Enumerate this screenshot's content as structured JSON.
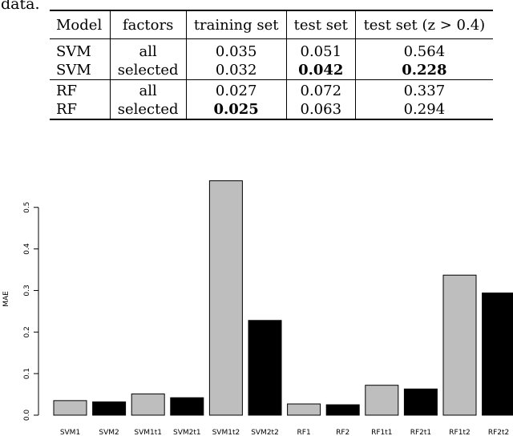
{
  "fragment_text": "data.",
  "table": {
    "headers": [
      "Model",
      "factors",
      "training set",
      "test set",
      "test set (z > 0.4)"
    ],
    "rows": [
      {
        "model": "SVM",
        "factors": "all",
        "training": "0.035",
        "test": "0.051",
        "test_z": "0.564",
        "bold": []
      },
      {
        "model": "SVM",
        "factors": "selected",
        "training": "0.032",
        "test": "0.042",
        "test_z": "0.228",
        "bold": [
          "test",
          "test_z"
        ]
      },
      {
        "model": "RF",
        "factors": "all",
        "training": "0.027",
        "test": "0.072",
        "test_z": "0.337",
        "bold": []
      },
      {
        "model": "RF",
        "factors": "selected",
        "training": "0.025",
        "test": "0.063",
        "test_z": "0.294",
        "bold": [
          "training"
        ]
      }
    ]
  },
  "chart_data": {
    "type": "bar",
    "ylabel": "MAE",
    "ylim": [
      0,
      0.57
    ],
    "yticks": [
      "0.0",
      "0.1",
      "0.2",
      "0.3",
      "0.4",
      "0.5"
    ],
    "categories": [
      "SVM1",
      "SVM2",
      "SVM1t1",
      "SVM2t1",
      "SVM1t2",
      "SVM2t2",
      "RF1",
      "RF2",
      "RF1t1",
      "RF2t1",
      "RF1t2",
      "RF2t2"
    ],
    "values": [
      0.035,
      0.032,
      0.051,
      0.042,
      0.564,
      0.228,
      0.027,
      0.025,
      0.072,
      0.063,
      0.337,
      0.294
    ],
    "colors": [
      "#bebebe",
      "#000000",
      "#bebebe",
      "#000000",
      "#bebebe",
      "#000000",
      "#bebebe",
      "#000000",
      "#bebebe",
      "#000000",
      "#bebebe",
      "#000000"
    ]
  }
}
